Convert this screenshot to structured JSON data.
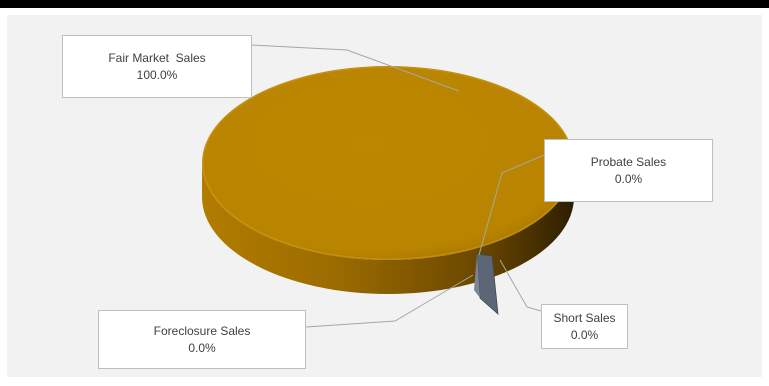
{
  "colors": {
    "fair_market": "#bb8500",
    "fair_market_side_light": "#a06f00",
    "fair_market_side_dark": "#3d2800",
    "short_sales": "#5c6676",
    "leader": "#a6a6a6",
    "background": "#f2f2f2",
    "callout_border": "#bfbfbf",
    "label_text": "#404040"
  },
  "chart_data": {
    "type": "pie",
    "style": "3d",
    "title": "",
    "legend": "none",
    "categories": [
      "Fair Market  Sales",
      "Probate Sales",
      "Short Sales",
      "Foreclosure Sales"
    ],
    "values": [
      100.0,
      0.0,
      0.0,
      0.0
    ],
    "unit": "%",
    "labels": [
      {
        "name": "Fair Market  Sales",
        "value": "100.0%"
      },
      {
        "name": "Probate Sales",
        "value": "0.0%"
      },
      {
        "name": "Short Sales",
        "value": "0.0%"
      },
      {
        "name": "Foreclosure Sales",
        "value": "0.0%"
      }
    ]
  }
}
